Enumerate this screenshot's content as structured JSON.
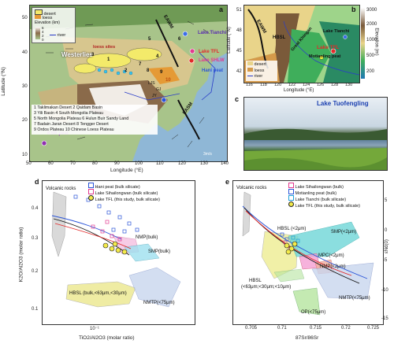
{
  "panel_a": {
    "label": "a",
    "map_labels": {
      "westerlies": "Westerlies",
      "loess_sites": "loess sites",
      "eawm": "EAWM",
      "easm": "EASM",
      "hani": "Hani peat",
      "sihailongwan": "Lake SHLW",
      "tianchi": "Lake Tianchi",
      "tfl": "Lake TFL",
      "ksb": "KSB peat",
      "ljs": "LJS",
      "gj": "GJ",
      "jy": "JY",
      "num_1": "1",
      "num_2": "2",
      "num_3": "3",
      "num_4": "4",
      "num_5": "5",
      "num_6": "6",
      "num_7": "7",
      "num_8": "8",
      "num_9": "9",
      "num_10": "10"
    },
    "legend": {
      "desert": "desert",
      "loess": "loess",
      "elevation": "Elevation (km)",
      "river": "river",
      "e0": "0",
      "e2": "2",
      "e4": "4",
      "e6": "6"
    },
    "y_label": "Latitude (°N)",
    "x_label": "Longitude (°E)",
    "y_ticks": [
      "50",
      "40",
      "30",
      "20",
      "10"
    ],
    "x_ticks": [
      "50",
      "60",
      "70",
      "80",
      "90",
      "100",
      "110",
      "120",
      "130",
      "140"
    ],
    "key_rows": [
      "1 Taklimakan Desert   2 Qaidam Basin",
      "3 Yili Basin          4 South Mongolia Plateau",
      "5 North Mongolia Plateau  6 Hulun Buir Sandy Land",
      "7 Badain Jaran Desert  8 Tengger Desert",
      "9 Ordos Plateau       10 Chinese Loess Plateau"
    ],
    "scale_note": "3m/s"
  },
  "panel_b": {
    "label": "b",
    "map_labels": {
      "eawm": "EAWM",
      "hbsl": "HBSL",
      "great_khingan": "Great Khingan",
      "tianchi": "Lake Tianchi",
      "tfl": "Lake TFL",
      "motianling": "Motianling peat"
    },
    "legend": {
      "desert": "desert",
      "loess": "loess",
      "river": "river"
    },
    "colorbar": {
      "title": "Elevation (m)",
      "ticks": [
        "3000",
        "2000",
        "1000",
        "500",
        "200"
      ]
    },
    "y_label": "Latitude (°N)",
    "x_label": "Longitude (°E)",
    "y_ticks": [
      "51",
      "48",
      "45",
      "42"
    ],
    "x_ticks": [
      "116",
      "118",
      "120",
      "122",
      "124",
      "126",
      "128",
      "130"
    ]
  },
  "panel_c": {
    "label": "c",
    "title": "Lake Tuofengling"
  },
  "panel_d": {
    "label": "d",
    "legend": [
      "Hani peat (bulk silicate)",
      "Lake Sihailongwan (bulk silicate)",
      "Lake TFL (this study, bulk silicate)"
    ],
    "annotations": {
      "volcanic": "Volcanic rocks",
      "nmp": "NMP(bulk)",
      "smp": "SMP(bulk)",
      "hbsl": "HBSL (bulk,<63μm,<30μm)",
      "nmtp": "NMTP(<75μm)"
    },
    "y_label": "K2O/Al2O3 (molar ratio)",
    "x_label": "TiO2/Al2O3 (molar ratio)",
    "y_ticks": [
      "0.4",
      "0.3",
      "0.2",
      "0.1"
    ],
    "x_ticks": [
      "10⁻¹"
    ]
  },
  "panel_e": {
    "label": "e",
    "legend": [
      "Lake Sihailongwan (bulk)",
      "Motianling peat (bulk)",
      "Lake Tianchi (bulk silicate)",
      "Lake TFL (this study, bulk silicate)"
    ],
    "annotations": {
      "volcanic": "Volcanic rocks",
      "hbsl_top": "HBSL (<2μm)",
      "smp": "SMP(<2μm)",
      "mpc": "MPC(<2μm)",
      "nmp": "NMP(<2μm)",
      "hbsl_bottom_1": "HBSL",
      "hbsl_bottom_2": "(<63μm;<30μm;<10μm)",
      "nmtp": "NMTP(<75μm)",
      "op": "OP(<75μm)"
    },
    "x_label": "87Sr/86Sr",
    "y_label": "εNd(0)",
    "x_ticks": [
      "0.705",
      "0.71",
      "0.715",
      "0.72",
      "0.725"
    ],
    "y_ticks": [
      "5",
      "0",
      "-5",
      "-10",
      "-15"
    ]
  }
}
